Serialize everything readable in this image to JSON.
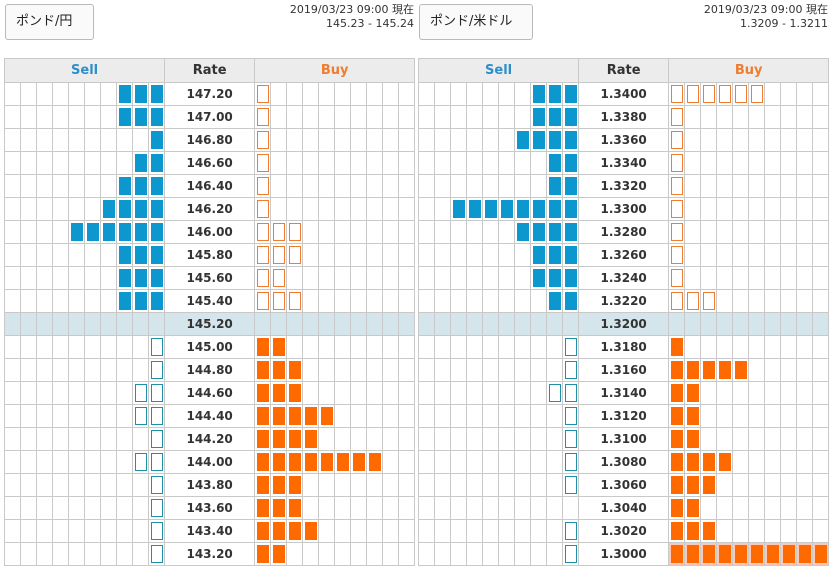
{
  "colors": {
    "sell": "#0d97cf",
    "buy": "#ff6a00",
    "current_row": "#d4e5ec",
    "highlight": "#fcc9b4"
  },
  "panels": [
    {
      "id": "gbpjpy",
      "pair_button": "ポンド/円",
      "timestamp": "2019/03/23 09:00 現在",
      "bid_ask": "145.23 - 145.24",
      "headers": {
        "sell": "Sell",
        "rate": "Rate",
        "buy": "Buy"
      },
      "rows": [
        {
          "rate": "147.20",
          "sell": 3,
          "sell_outline": false,
          "buy": 1,
          "buy_outline": true
        },
        {
          "rate": "147.00",
          "sell": 3,
          "sell_outline": false,
          "buy": 1,
          "buy_outline": true
        },
        {
          "rate": "146.80",
          "sell": 1,
          "sell_outline": false,
          "buy": 1,
          "buy_outline": true
        },
        {
          "rate": "146.60",
          "sell": 2,
          "sell_outline": false,
          "buy": 1,
          "buy_outline": true
        },
        {
          "rate": "146.40",
          "sell": 3,
          "sell_outline": false,
          "buy": 1,
          "buy_outline": true
        },
        {
          "rate": "146.20",
          "sell": 4,
          "sell_outline": false,
          "buy": 1,
          "buy_outline": true
        },
        {
          "rate": "146.00",
          "sell": 6,
          "sell_outline": false,
          "buy": 3,
          "buy_outline": true
        },
        {
          "rate": "145.80",
          "sell": 3,
          "sell_outline": false,
          "buy": 3,
          "buy_outline": true
        },
        {
          "rate": "145.60",
          "sell": 3,
          "sell_outline": false,
          "buy": 2,
          "buy_outline": true
        },
        {
          "rate": "145.40",
          "sell": 3,
          "sell_outline": false,
          "buy": 3,
          "buy_outline": true
        },
        {
          "rate": "145.20",
          "sell": 0,
          "sell_outline": false,
          "buy": 0,
          "buy_outline": false,
          "current": true
        },
        {
          "rate": "145.00",
          "sell": 1,
          "sell_outline": true,
          "buy": 2,
          "buy_outline": false
        },
        {
          "rate": "144.80",
          "sell": 1,
          "sell_outline": true,
          "buy": 3,
          "buy_outline": false
        },
        {
          "rate": "144.60",
          "sell": 2,
          "sell_outline": true,
          "buy": 3,
          "buy_outline": false
        },
        {
          "rate": "144.40",
          "sell": 2,
          "sell_outline": true,
          "buy": 5,
          "buy_outline": false
        },
        {
          "rate": "144.20",
          "sell": 1,
          "sell_outline": true,
          "buy": 4,
          "buy_outline": false
        },
        {
          "rate": "144.00",
          "sell": 2,
          "sell_outline": true,
          "buy": 8,
          "buy_outline": false
        },
        {
          "rate": "143.80",
          "sell": 1,
          "sell_outline": true,
          "buy": 3,
          "buy_outline": false
        },
        {
          "rate": "143.60",
          "sell": 1,
          "sell_outline": true,
          "buy": 3,
          "buy_outline": false
        },
        {
          "rate": "143.40",
          "sell": 1,
          "sell_outline": true,
          "buy": 4,
          "buy_outline": false
        },
        {
          "rate": "143.20",
          "sell": 1,
          "sell_outline": true,
          "buy": 2,
          "buy_outline": false
        }
      ]
    },
    {
      "id": "gbpusd",
      "pair_button": "ポンド/米ドル",
      "timestamp": "2019/03/23 09:00 現在",
      "bid_ask": "1.3209 - 1.3211",
      "headers": {
        "sell": "Sell",
        "rate": "Rate",
        "buy": "Buy"
      },
      "rows": [
        {
          "rate": "1.3400",
          "sell": 3,
          "sell_outline": false,
          "buy": 6,
          "buy_outline": true
        },
        {
          "rate": "1.3380",
          "sell": 3,
          "sell_outline": false,
          "buy": 1,
          "buy_outline": true
        },
        {
          "rate": "1.3360",
          "sell": 4,
          "sell_outline": false,
          "buy": 1,
          "buy_outline": true
        },
        {
          "rate": "1.3340",
          "sell": 2,
          "sell_outline": false,
          "buy": 1,
          "buy_outline": true
        },
        {
          "rate": "1.3320",
          "sell": 2,
          "sell_outline": false,
          "buy": 1,
          "buy_outline": true
        },
        {
          "rate": "1.3300",
          "sell": 8,
          "sell_outline": false,
          "buy": 1,
          "buy_outline": true
        },
        {
          "rate": "1.3280",
          "sell": 4,
          "sell_outline": false,
          "buy": 1,
          "buy_outline": true
        },
        {
          "rate": "1.3260",
          "sell": 3,
          "sell_outline": false,
          "buy": 1,
          "buy_outline": true
        },
        {
          "rate": "1.3240",
          "sell": 3,
          "sell_outline": false,
          "buy": 1,
          "buy_outline": true
        },
        {
          "rate": "1.3220",
          "sell": 2,
          "sell_outline": false,
          "buy": 3,
          "buy_outline": true
        },
        {
          "rate": "1.3200",
          "sell": 0,
          "sell_outline": false,
          "buy": 0,
          "buy_outline": false,
          "current": true
        },
        {
          "rate": "1.3180",
          "sell": 1,
          "sell_outline": true,
          "buy": 1,
          "buy_outline": false
        },
        {
          "rate": "1.3160",
          "sell": 1,
          "sell_outline": true,
          "buy": 5,
          "buy_outline": false
        },
        {
          "rate": "1.3140",
          "sell": 2,
          "sell_outline": true,
          "buy": 2,
          "buy_outline": false
        },
        {
          "rate": "1.3120",
          "sell": 1,
          "sell_outline": true,
          "buy": 2,
          "buy_outline": false
        },
        {
          "rate": "1.3100",
          "sell": 1,
          "sell_outline": true,
          "buy": 2,
          "buy_outline": false
        },
        {
          "rate": "1.3080",
          "sell": 1,
          "sell_outline": true,
          "buy": 4,
          "buy_outline": false
        },
        {
          "rate": "1.3060",
          "sell": 1,
          "sell_outline": true,
          "buy": 3,
          "buy_outline": false
        },
        {
          "rate": "1.3040",
          "sell": 0,
          "sell_outline": false,
          "buy": 2,
          "buy_outline": false
        },
        {
          "rate": "1.3020",
          "sell": 1,
          "sell_outline": true,
          "buy": 3,
          "buy_outline": false
        },
        {
          "rate": "1.3000",
          "sell": 1,
          "sell_outline": true,
          "buy": 10,
          "buy_outline": false,
          "buy_highlight": true
        }
      ]
    }
  ]
}
